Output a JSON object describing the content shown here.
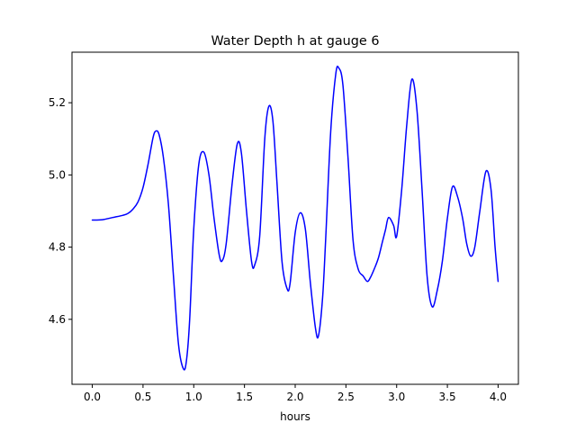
{
  "chart_data": {
    "type": "line",
    "title": "Water Depth h at gauge 6",
    "xlabel": "hours",
    "ylabel": "",
    "xlim": [
      -0.2,
      4.2
    ],
    "ylim": [
      4.42,
      5.34
    ],
    "grid": false,
    "xticks": [
      0.0,
      0.5,
      1.0,
      1.5,
      2.0,
      2.5,
      3.0,
      3.5,
      4.0
    ],
    "xtick_labels": [
      "0.0",
      "0.5",
      "1.0",
      "1.5",
      "2.0",
      "2.5",
      "3.0",
      "3.5",
      "4.0"
    ],
    "yticks": [
      4.6,
      4.8,
      5.0,
      5.2
    ],
    "ytick_labels": [
      "4.6",
      "4.8",
      "5.0",
      "5.2"
    ],
    "series": [
      {
        "color": "#0000ff",
        "x": [
          0.0,
          0.1,
          0.2,
          0.3,
          0.35,
          0.4,
          0.45,
          0.5,
          0.55,
          0.6,
          0.63,
          0.66,
          0.7,
          0.75,
          0.8,
          0.85,
          0.9,
          0.93,
          0.96,
          1.0,
          1.05,
          1.1,
          1.15,
          1.2,
          1.25,
          1.28,
          1.32,
          1.38,
          1.43,
          1.47,
          1.52,
          1.57,
          1.6,
          1.65,
          1.7,
          1.74,
          1.78,
          1.82,
          1.87,
          1.92,
          1.95,
          2.0,
          2.05,
          2.1,
          2.15,
          2.2,
          2.23,
          2.27,
          2.3,
          2.35,
          2.4,
          2.43,
          2.47,
          2.52,
          2.57,
          2.62,
          2.67,
          2.71,
          2.74,
          2.78,
          2.82,
          2.86,
          2.89,
          2.92,
          2.97,
          3.0,
          3.05,
          3.1,
          3.15,
          3.2,
          3.25,
          3.3,
          3.35,
          3.4,
          3.45,
          3.5,
          3.55,
          3.6,
          3.65,
          3.69,
          3.73,
          3.77,
          3.82,
          3.88,
          3.93,
          3.97,
          4.0
        ],
        "y": [
          4.875,
          4.876,
          4.882,
          4.888,
          4.893,
          4.905,
          4.925,
          4.965,
          5.03,
          5.105,
          5.122,
          5.11,
          5.05,
          4.92,
          4.72,
          4.53,
          4.462,
          4.49,
          4.6,
          4.85,
          5.03,
          5.063,
          5.0,
          4.88,
          4.78,
          4.762,
          4.81,
          4.98,
          5.087,
          5.06,
          4.9,
          4.76,
          4.75,
          4.83,
          5.1,
          5.19,
          5.15,
          4.98,
          4.76,
          4.685,
          4.7,
          4.84,
          4.895,
          4.85,
          4.7,
          4.575,
          4.555,
          4.66,
          4.82,
          5.12,
          5.28,
          5.296,
          5.25,
          5.05,
          4.82,
          4.74,
          4.72,
          4.705,
          4.715,
          4.74,
          4.77,
          4.815,
          4.848,
          4.882,
          4.86,
          4.83,
          4.96,
          5.14,
          5.265,
          5.18,
          4.96,
          4.72,
          4.635,
          4.68,
          4.76,
          4.88,
          4.967,
          4.94,
          4.88,
          4.81,
          4.775,
          4.8,
          4.9,
          5.01,
          4.96,
          4.8,
          4.705
        ]
      }
    ]
  }
}
